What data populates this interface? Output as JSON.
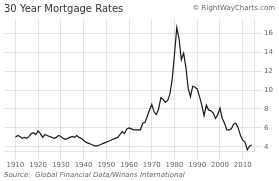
{
  "chart_data": {
    "type": "line",
    "title": "30 Year Mortgage Rates",
    "annotations": [
      "© RightWayCharts.com",
      "Source:  Global Financial Data/Winans International"
    ],
    "x": [
      1910,
      1911,
      1912,
      1913,
      1914,
      1915,
      1916,
      1917,
      1918,
      1919,
      1920,
      1921,
      1922,
      1923,
      1924,
      1925,
      1926,
      1927,
      1928,
      1929,
      1930,
      1931,
      1932,
      1933,
      1934,
      1935,
      1936,
      1937,
      1938,
      1939,
      1940,
      1941,
      1942,
      1943,
      1944,
      1945,
      1946,
      1947,
      1948,
      1949,
      1950,
      1951,
      1952,
      1953,
      1954,
      1955,
      1956,
      1957,
      1958,
      1959,
      1960,
      1961,
      1962,
      1963,
      1964,
      1965,
      1966,
      1967,
      1968,
      1969,
      1970,
      1971,
      1972,
      1973,
      1974,
      1975,
      1976,
      1977,
      1978,
      1979,
      1980,
      1981,
      1982,
      1983,
      1984,
      1985,
      1986,
      1987,
      1988,
      1989,
      1990,
      1991,
      1992,
      1993,
      1994,
      1995,
      1996,
      1997,
      1998,
      1999,
      2000,
      2001,
      2002,
      2003,
      2004,
      2005,
      2006,
      2007,
      2008,
      2009,
      2010,
      2011,
      2012,
      2013,
      2014
    ],
    "values": [
      5.0,
      5.2,
      5.1,
      4.9,
      5.0,
      4.9,
      5.1,
      5.4,
      5.5,
      5.3,
      5.7,
      5.4,
      5.0,
      5.3,
      5.2,
      5.1,
      5.0,
      4.9,
      5.0,
      5.2,
      5.1,
      4.9,
      4.8,
      4.9,
      5.0,
      5.1,
      5.0,
      5.2,
      5.0,
      4.9,
      4.7,
      4.5,
      4.4,
      4.3,
      4.2,
      4.1,
      4.1,
      4.2,
      4.3,
      4.4,
      4.5,
      4.6,
      4.7,
      4.8,
      4.9,
      5.0,
      5.3,
      5.6,
      5.4,
      5.9,
      6.0,
      5.9,
      5.8,
      5.8,
      5.8,
      5.8,
      6.5,
      6.6,
      7.2,
      7.9,
      8.5,
      7.7,
      7.4,
      8.0,
      9.2,
      9.0,
      8.7,
      8.9,
      9.6,
      11.2,
      13.8,
      16.6,
      15.4,
      13.2,
      13.9,
      12.4,
      10.2,
      9.3,
      10.4,
      10.3,
      10.1,
      9.3,
      8.4,
      7.3,
      8.4,
      7.9,
      7.8,
      7.6,
      7.0,
      7.4,
      8.1,
      7.0,
      6.5,
      5.8,
      5.8,
      5.9,
      6.4,
      6.5,
      6.0,
      5.2,
      4.7,
      4.5,
      3.7,
      4.1,
      4.2
    ],
    "color": "#1a1a1a",
    "xlim": [
      1905,
      2015
    ],
    "xticks": [
      1910,
      1920,
      1930,
      1940,
      1950,
      1960,
      1970,
      1980,
      1990,
      2000,
      2010
    ],
    "ylim": [
      3.5,
      17.5
    ],
    "yticks": [
      4,
      6,
      8,
      10,
      12,
      14,
      16
    ],
    "grid": true
  }
}
